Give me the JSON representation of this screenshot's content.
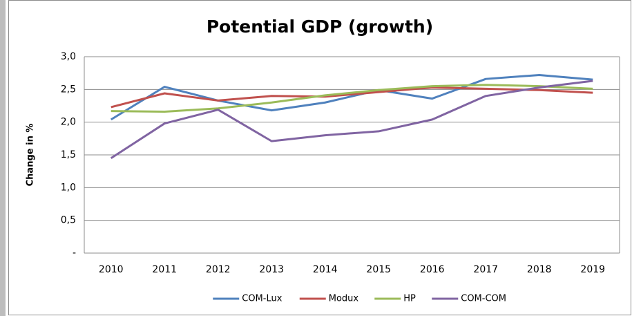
{
  "chart_data": {
    "type": "line",
    "title": "Potential GDP (growth)",
    "y_label": "Change in %",
    "categories": [
      "2010",
      "2011",
      "2012",
      "2013",
      "2014",
      "2015",
      "2016",
      "2017",
      "2018",
      "2019"
    ],
    "series": [
      {
        "name": "COM-Lux",
        "color": "#4f81bd",
        "values": [
          2.04,
          2.54,
          2.33,
          2.18,
          2.3,
          2.49,
          2.36,
          2.66,
          2.72,
          2.65
        ]
      },
      {
        "name": "Modux",
        "color": "#c0504d",
        "values": [
          2.23,
          2.44,
          2.33,
          2.4,
          2.39,
          2.46,
          2.53,
          2.51,
          2.49,
          2.45
        ]
      },
      {
        "name": "HP",
        "color": "#9bbb59",
        "values": [
          2.17,
          2.16,
          2.21,
          2.3,
          2.41,
          2.49,
          2.55,
          2.57,
          2.55,
          2.51
        ]
      },
      {
        "name": "COM-COM",
        "color": "#8064a2",
        "values": [
          1.45,
          1.98,
          2.19,
          1.71,
          1.8,
          1.86,
          2.04,
          2.4,
          2.53,
          2.63
        ]
      }
    ],
    "ylim": [
      0,
      3
    ],
    "yticks": [
      {
        "value": 0,
        "label": "-"
      },
      {
        "value": 0.5,
        "label": "0,5"
      },
      {
        "value": 1,
        "label": "1,0"
      },
      {
        "value": 1.5,
        "label": "1,5"
      },
      {
        "value": 2,
        "label": "2,0"
      },
      {
        "value": 2.5,
        "label": "2,5"
      },
      {
        "value": 3,
        "label": "3,0"
      }
    ],
    "grid": true,
    "legend": "bottom"
  }
}
